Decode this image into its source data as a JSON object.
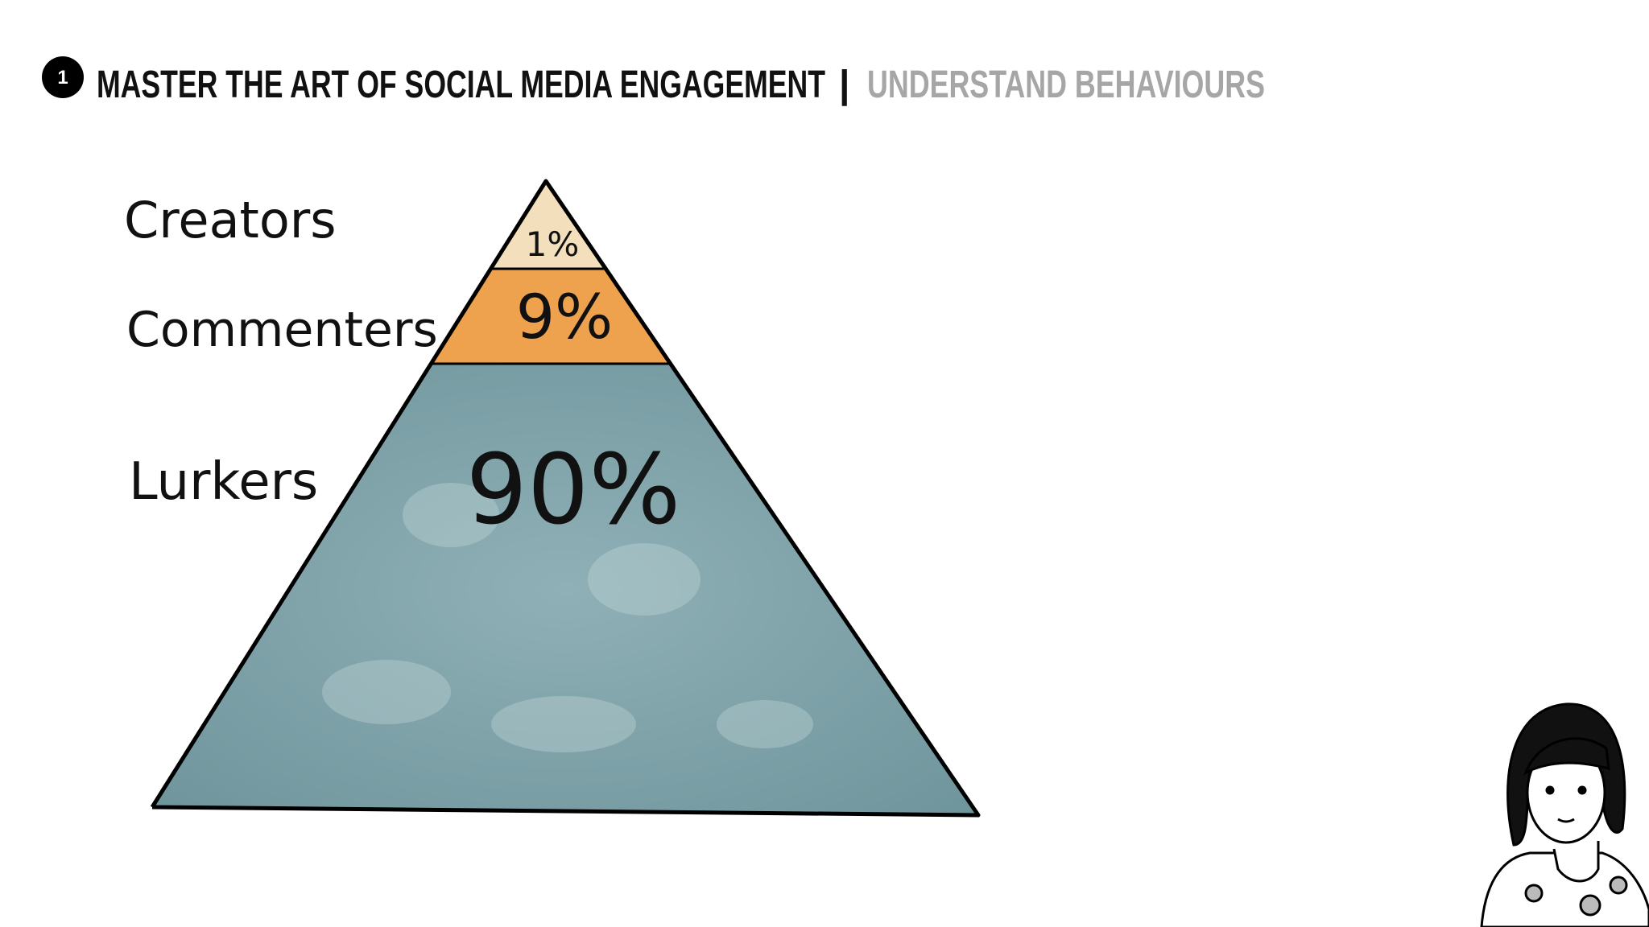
{
  "header": {
    "number": "1",
    "title": "MASTER THE ART OF SOCIAL MEDIA ENGAGEMENT",
    "separator": "|",
    "subtitle": "UNDERSTAND BEHAVIOURS"
  },
  "pyramid": {
    "levels": [
      {
        "label": "Creators",
        "share": "1%"
      },
      {
        "label": "Commenters",
        "share": "9%"
      },
      {
        "label": "Lurkers",
        "share": "90%"
      }
    ]
  }
}
